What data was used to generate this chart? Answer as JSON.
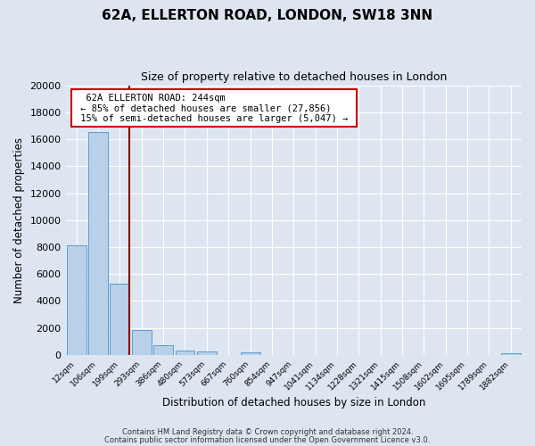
{
  "title": "62A, ELLERTON ROAD, LONDON, SW18 3NN",
  "subtitle": "Size of property relative to detached houses in London",
  "xlabel": "Distribution of detached houses by size in London",
  "ylabel": "Number of detached properties",
  "bar_labels": [
    "12sqm",
    "106sqm",
    "199sqm",
    "293sqm",
    "386sqm",
    "480sqm",
    "573sqm",
    "667sqm",
    "760sqm",
    "854sqm",
    "947sqm",
    "1041sqm",
    "1134sqm",
    "1228sqm",
    "1321sqm",
    "1415sqm",
    "1508sqm",
    "1602sqm",
    "1695sqm",
    "1789sqm",
    "1882sqm"
  ],
  "bar_values": [
    8100,
    16550,
    5300,
    1850,
    750,
    320,
    230,
    0,
    170,
    0,
    0,
    0,
    0,
    0,
    0,
    0,
    0,
    0,
    0,
    0,
    150
  ],
  "bar_color": "#b8d0e8",
  "bar_edge_color": "#5b9bd5",
  "background_color": "#dde6f0",
  "grid_color": "#ffffff",
  "ylim": [
    0,
    20000
  ],
  "yticks": [
    0,
    2000,
    4000,
    6000,
    8000,
    10000,
    12000,
    14000,
    16000,
    18000,
    20000
  ],
  "vline_x": 2.44,
  "vline_color": "#8b0000",
  "annotation_title": "62A ELLERTON ROAD: 244sqm",
  "annotation_line1": "← 85% of detached houses are smaller (27,856)",
  "annotation_line2": "15% of semi-detached houses are larger (5,047) →",
  "annotation_box_color": "#ffffff",
  "annotation_box_edge_color": "#cc0000",
  "footer_line1": "Contains HM Land Registry data © Crown copyright and database right 2024.",
  "footer_line2": "Contains public sector information licensed under the Open Government Licence v3.0."
}
